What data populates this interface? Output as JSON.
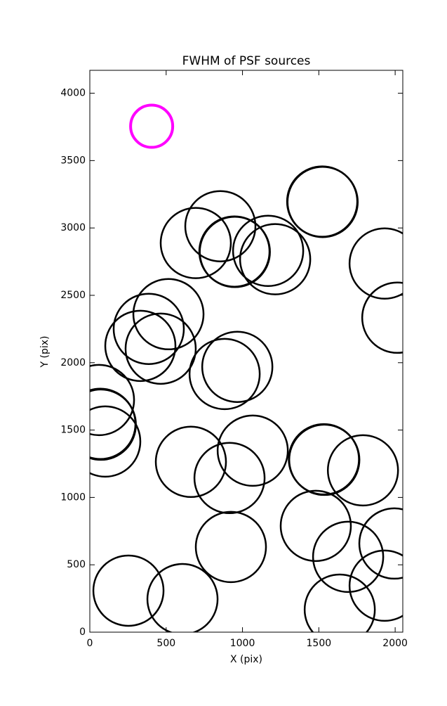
{
  "chart_data": {
    "type": "scatter",
    "title": "FWHM of PSF sources",
    "x_label": "X (pix)",
    "y_label": "Y (pix)",
    "xlim": [
      0,
      2050
    ],
    "ylim": [
      0,
      4170
    ],
    "xticks": [
      0,
      500,
      1000,
      1500,
      2000
    ],
    "yticks": [
      0,
      500,
      1000,
      1500,
      2000,
      2500,
      3000,
      3500,
      4000
    ],
    "series": [
      {
        "color": "#000000",
        "x": [
          1522,
          1525,
          855,
          694,
          947,
          950,
          1168,
          1214,
          1931,
          2014,
          515,
          386,
          331,
          464,
          966,
          883,
          60,
          69,
          72,
          101,
          1536,
          1533,
          1067,
          662,
          915,
          1789,
          1480,
          1995,
          1692,
          924,
          1931,
          1637,
          253,
          607
        ],
        "values": [
          3196,
          3193,
          3013,
          2888,
          2825,
          2822,
          2830,
          2768,
          2736,
          2334,
          2360,
          2251,
          2125,
          2104,
          1969,
          1916,
          1723,
          1546,
          1540,
          1415,
          1279,
          1283,
          1347,
          1264,
          1144,
          1201,
          789,
          658,
          559,
          632,
          345,
          167,
          308,
          245
        ]
      },
      {
        "color": "#ff00ff",
        "x": [
          405
        ],
        "values": [
          3755
        ]
      }
    ]
  }
}
